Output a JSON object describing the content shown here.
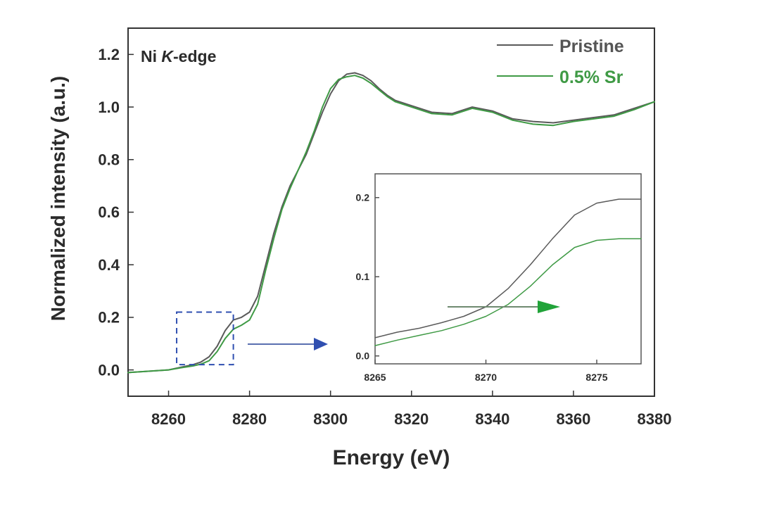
{
  "colors": {
    "pristine": "#5a5a5a",
    "sr": "#3f9a45",
    "axis": "#333333",
    "box": "#2f4fb0",
    "arrow_blue": "#2f4fb0",
    "arrow_green": "#21a339"
  },
  "chart_data": [
    {
      "type": "line",
      "annotation": "Ni K-edge",
      "annotation_parts": [
        "Ni ",
        "K",
        "-edge"
      ],
      "xlabel": "Energy (eV)",
      "ylabel": "Normalized intensity (a.u.)",
      "xlim": [
        8250,
        8380
      ],
      "ylim": [
        -0.1,
        1.3
      ],
      "xticks": [
        8260,
        8280,
        8300,
        8320,
        8340,
        8360,
        8380
      ],
      "yticks": [
        0.0,
        0.2,
        0.4,
        0.6,
        0.8,
        1.0,
        1.2
      ],
      "xtick_labels": [
        "8260",
        "8280",
        "8300",
        "8320",
        "8340",
        "8360",
        "8380"
      ],
      "ytick_labels": [
        "0.0",
        "0.2",
        "0.4",
        "0.6",
        "0.8",
        "1.0",
        "1.2"
      ],
      "grid": false,
      "legend_position": "top-right",
      "zoom_region": {
        "x": [
          8262,
          8276
        ],
        "y": [
          0.02,
          0.22
        ]
      },
      "series": [
        {
          "name": "Pristine",
          "x": [
            8250,
            8255,
            8260,
            8263,
            8266,
            8268,
            8270,
            8272,
            8274,
            8276,
            8278,
            8280,
            8282,
            8284,
            8286,
            8288,
            8290,
            8292,
            8294,
            8296,
            8298,
            8300,
            8302,
            8304,
            8306,
            8308,
            8310,
            8312,
            8314,
            8316,
            8318,
            8320,
            8325,
            8330,
            8335,
            8340,
            8345,
            8350,
            8355,
            8360,
            8365,
            8370,
            8375,
            8380
          ],
          "y": [
            -0.01,
            -0.005,
            0.0,
            0.01,
            0.02,
            0.03,
            0.05,
            0.09,
            0.15,
            0.19,
            0.2,
            0.22,
            0.28,
            0.4,
            0.52,
            0.62,
            0.7,
            0.76,
            0.82,
            0.9,
            0.98,
            1.05,
            1.1,
            1.125,
            1.13,
            1.12,
            1.1,
            1.07,
            1.045,
            1.025,
            1.015,
            1.005,
            0.98,
            0.975,
            1.0,
            0.985,
            0.955,
            0.945,
            0.94,
            0.95,
            0.96,
            0.97,
            0.995,
            1.02
          ]
        },
        {
          "name": "0.5% Sr",
          "x": [
            8250,
            8255,
            8260,
            8263,
            8266,
            8268,
            8270,
            8272,
            8274,
            8276,
            8278,
            8280,
            8282,
            8284,
            8286,
            8288,
            8290,
            8292,
            8294,
            8296,
            8298,
            8300,
            8302,
            8304,
            8306,
            8308,
            8310,
            8312,
            8314,
            8316,
            8318,
            8320,
            8325,
            8330,
            8335,
            8340,
            8345,
            8350,
            8355,
            8360,
            8365,
            8370,
            8375,
            8380
          ],
          "y": [
            -0.01,
            -0.005,
            0.0,
            0.008,
            0.015,
            0.022,
            0.035,
            0.07,
            0.12,
            0.155,
            0.17,
            0.19,
            0.25,
            0.38,
            0.5,
            0.61,
            0.69,
            0.76,
            0.83,
            0.91,
            1.0,
            1.07,
            1.105,
            1.115,
            1.12,
            1.11,
            1.09,
            1.065,
            1.04,
            1.02,
            1.01,
            1.0,
            0.975,
            0.97,
            0.995,
            0.98,
            0.95,
            0.935,
            0.93,
            0.945,
            0.955,
            0.965,
            0.99,
            1.02
          ]
        }
      ]
    },
    {
      "type": "line",
      "xlim": [
        8265,
        8277
      ],
      "ylim": [
        -0.01,
        0.23
      ],
      "xticks": [
        8265,
        8270,
        8275
      ],
      "yticks": [
        0.0,
        0.1,
        0.2
      ],
      "xtick_labels": [
        "8265",
        "8270",
        "8275"
      ],
      "ytick_labels": [
        "0.0",
        "0.1",
        "0.2"
      ],
      "grid": false,
      "series": [
        {
          "name": "Pristine",
          "x": [
            8265,
            8266,
            8267,
            8268,
            8269,
            8270,
            8271,
            8272,
            8273,
            8274,
            8275,
            8276,
            8277
          ],
          "y": [
            0.023,
            0.03,
            0.035,
            0.042,
            0.05,
            0.062,
            0.085,
            0.115,
            0.148,
            0.178,
            0.193,
            0.198,
            0.198
          ]
        },
        {
          "name": "0.5% Sr",
          "x": [
            8265,
            8266,
            8267,
            8268,
            8269,
            8270,
            8271,
            8272,
            8273,
            8274,
            8275,
            8276,
            8277
          ],
          "y": [
            0.013,
            0.02,
            0.026,
            0.032,
            0.04,
            0.05,
            0.065,
            0.088,
            0.115,
            0.137,
            0.146,
            0.148,
            0.148
          ]
        }
      ]
    }
  ]
}
